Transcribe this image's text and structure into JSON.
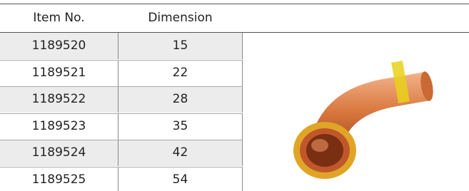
{
  "table": {
    "header": [
      "Item No.",
      "Dimension"
    ],
    "rows": [
      [
        "1189520",
        "15"
      ],
      [
        "1189521",
        "22"
      ],
      [
        "1189522",
        "28"
      ],
      [
        "1189523",
        "35"
      ],
      [
        "1189524",
        "42"
      ],
      [
        "1189525",
        "54"
      ]
    ]
  }
}
